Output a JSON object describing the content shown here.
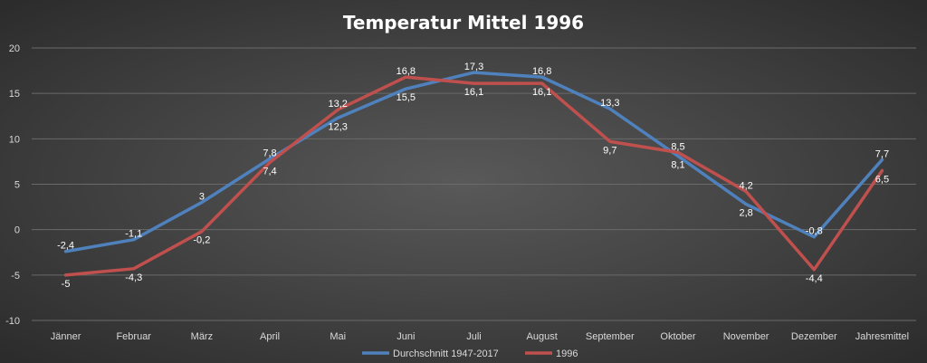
{
  "chart_data": {
    "type": "line",
    "title": "Temperatur Mittel 1996",
    "categories": [
      "Jänner",
      "Februar",
      "März",
      "April",
      "Mai",
      "Juni",
      "Juli",
      "August",
      "September",
      "Oktober",
      "November",
      "Dezember",
      "Jahresmittel"
    ],
    "series": [
      {
        "name": "Durchschnitt 1947-2017",
        "color": "#4f81bd",
        "values": [
          -2.4,
          -1.1,
          3.0,
          7.8,
          12.3,
          15.5,
          17.3,
          16.8,
          13.3,
          8.1,
          2.8,
          -0.8,
          7.7
        ],
        "labels": [
          "-2,4",
          "-1,1",
          "3",
          "7,8",
          "12,3",
          "15,5",
          "17,3",
          "16,8",
          "13,3",
          "8,1",
          "2,8",
          "-0,8",
          "7,7"
        ]
      },
      {
        "name": "1996",
        "color": "#c0504d",
        "values": [
          -5.0,
          -4.3,
          -0.2,
          7.4,
          13.2,
          16.8,
          16.1,
          16.1,
          9.7,
          8.5,
          4.2,
          -4.4,
          6.5
        ],
        "labels": [
          "-5",
          "-4,3",
          "-0,2",
          "7,4",
          "13,2",
          "16,8",
          "16,1",
          "16,1",
          "9,7",
          "8,5",
          "4,2",
          "-4,4",
          "6,5"
        ]
      }
    ],
    "ylim": [
      -10,
      20
    ],
    "yticks": [
      "-10",
      "-5",
      "0",
      "5",
      "10",
      "15",
      "20"
    ],
    "grid": true,
    "legend_position": "bottom"
  }
}
